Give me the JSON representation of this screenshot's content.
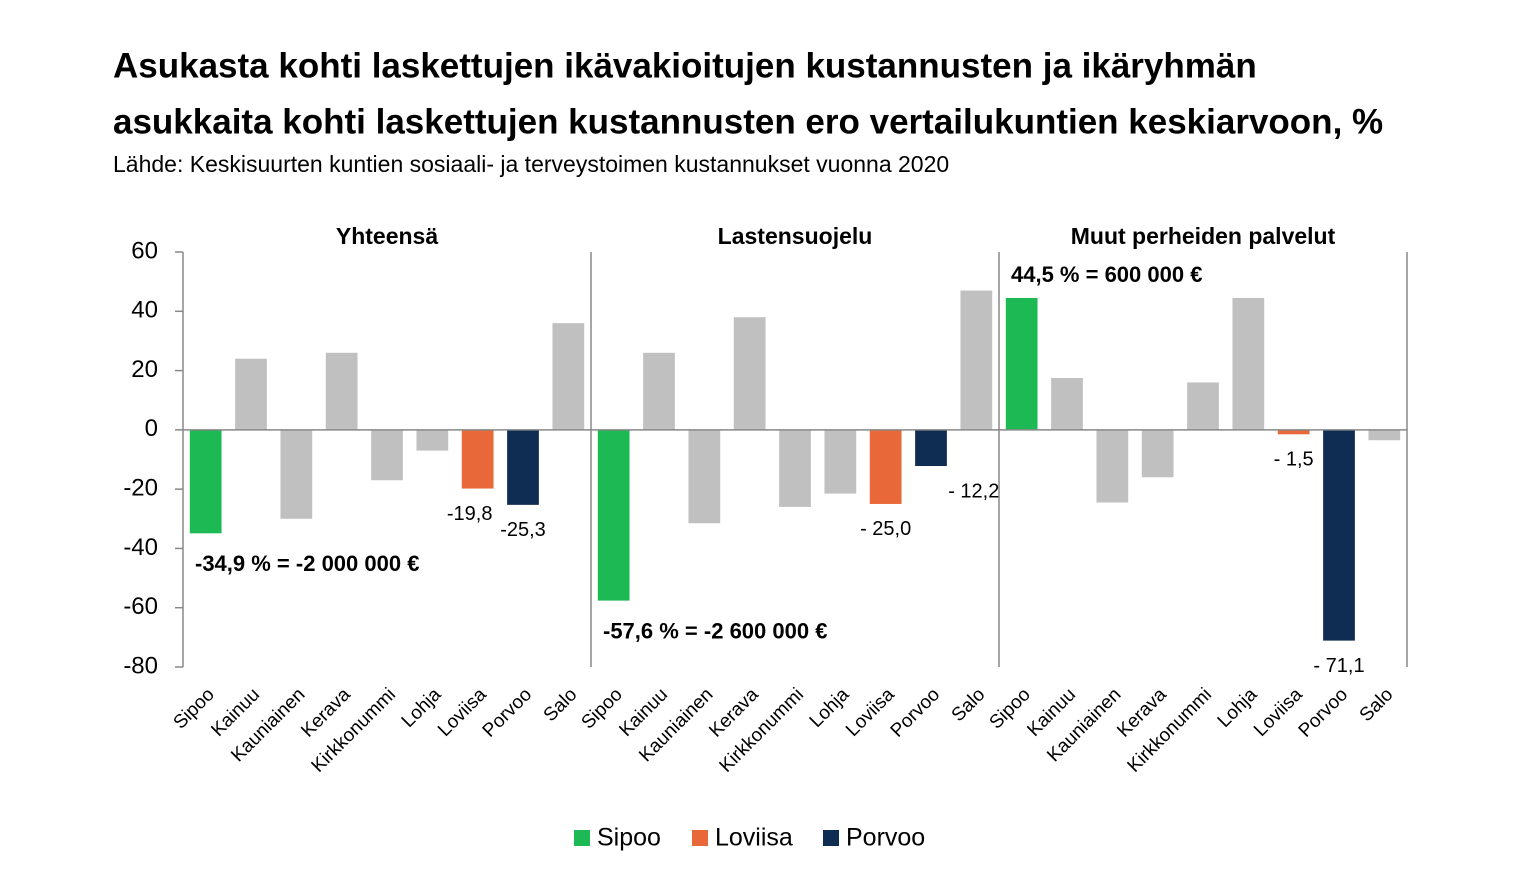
{
  "chart_data": {
    "type": "bar",
    "title": [
      "Asukasta kohti laskettujen ikävakioitujen kustannusten ja ikäryhmän",
      "asukkaita kohti laskettujen kustannusten ero vertailukuntien keskiarvoon, %"
    ],
    "subtitle": "Lähde: Keskisuurten kuntien sosiaali- ja terveystoimen kustannukset vuonna 2020",
    "ylim": [
      -80,
      60
    ],
    "yticks": [
      -80,
      -60,
      -40,
      -20,
      0,
      20,
      40,
      60
    ],
    "other_color": "#c0c0c0",
    "series": [
      {
        "name": "Sipoo",
        "color": "#1db954"
      },
      {
        "name": "Loviisa",
        "color": "#e8683a"
      },
      {
        "name": "Porvoo",
        "color": "#0f2d52"
      }
    ],
    "panels": [
      {
        "title": "Yhteensä",
        "categories": [
          "Sipoo",
          "Kainuu",
          "Kauniainen",
          "Kerava",
          "Kirkkonummi",
          "Lohja",
          "Loviisa",
          "Porvoo",
          "Salo"
        ],
        "values": [
          -34.9,
          24,
          -30,
          26,
          -17,
          -7,
          -19.8,
          -25.3,
          36
        ],
        "value_labels": [
          null,
          null,
          null,
          null,
          null,
          null,
          "-19,8",
          "-25,3",
          null
        ],
        "annotation": "-34,9 % = -2 000 000 €"
      },
      {
        "title": "Lastensuojelu",
        "categories": [
          "Sipoo",
          "Kainuu",
          "Kauniainen",
          "Kerava",
          "Kirkkonummi",
          "Lohja",
          "Loviisa",
          "Porvoo",
          "Salo"
        ],
        "values": [
          -57.6,
          26,
          -31.5,
          38,
          -26,
          -21.5,
          -25.0,
          -12.2,
          47
        ],
        "value_labels": [
          null,
          null,
          null,
          null,
          null,
          null,
          "- 25,0",
          "- 12,2",
          null
        ],
        "annotation": "-57,6 % = -2 600 000 €"
      },
      {
        "title": "Muut perheiden palvelut",
        "categories": [
          "Sipoo",
          "Kainuu",
          "Kauniainen",
          "Kerava",
          "Kirkkonummi",
          "Lohja",
          "Loviisa",
          "Porvoo",
          "Salo"
        ],
        "values": [
          44.5,
          17.5,
          -24.5,
          -16,
          16,
          44.5,
          -1.5,
          -71.1,
          -3.5
        ],
        "value_labels": [
          null,
          null,
          null,
          null,
          null,
          null,
          "- 1,5",
          "- 71,1",
          null
        ],
        "annotation": "44,5 % = 600 000 €"
      }
    ]
  }
}
